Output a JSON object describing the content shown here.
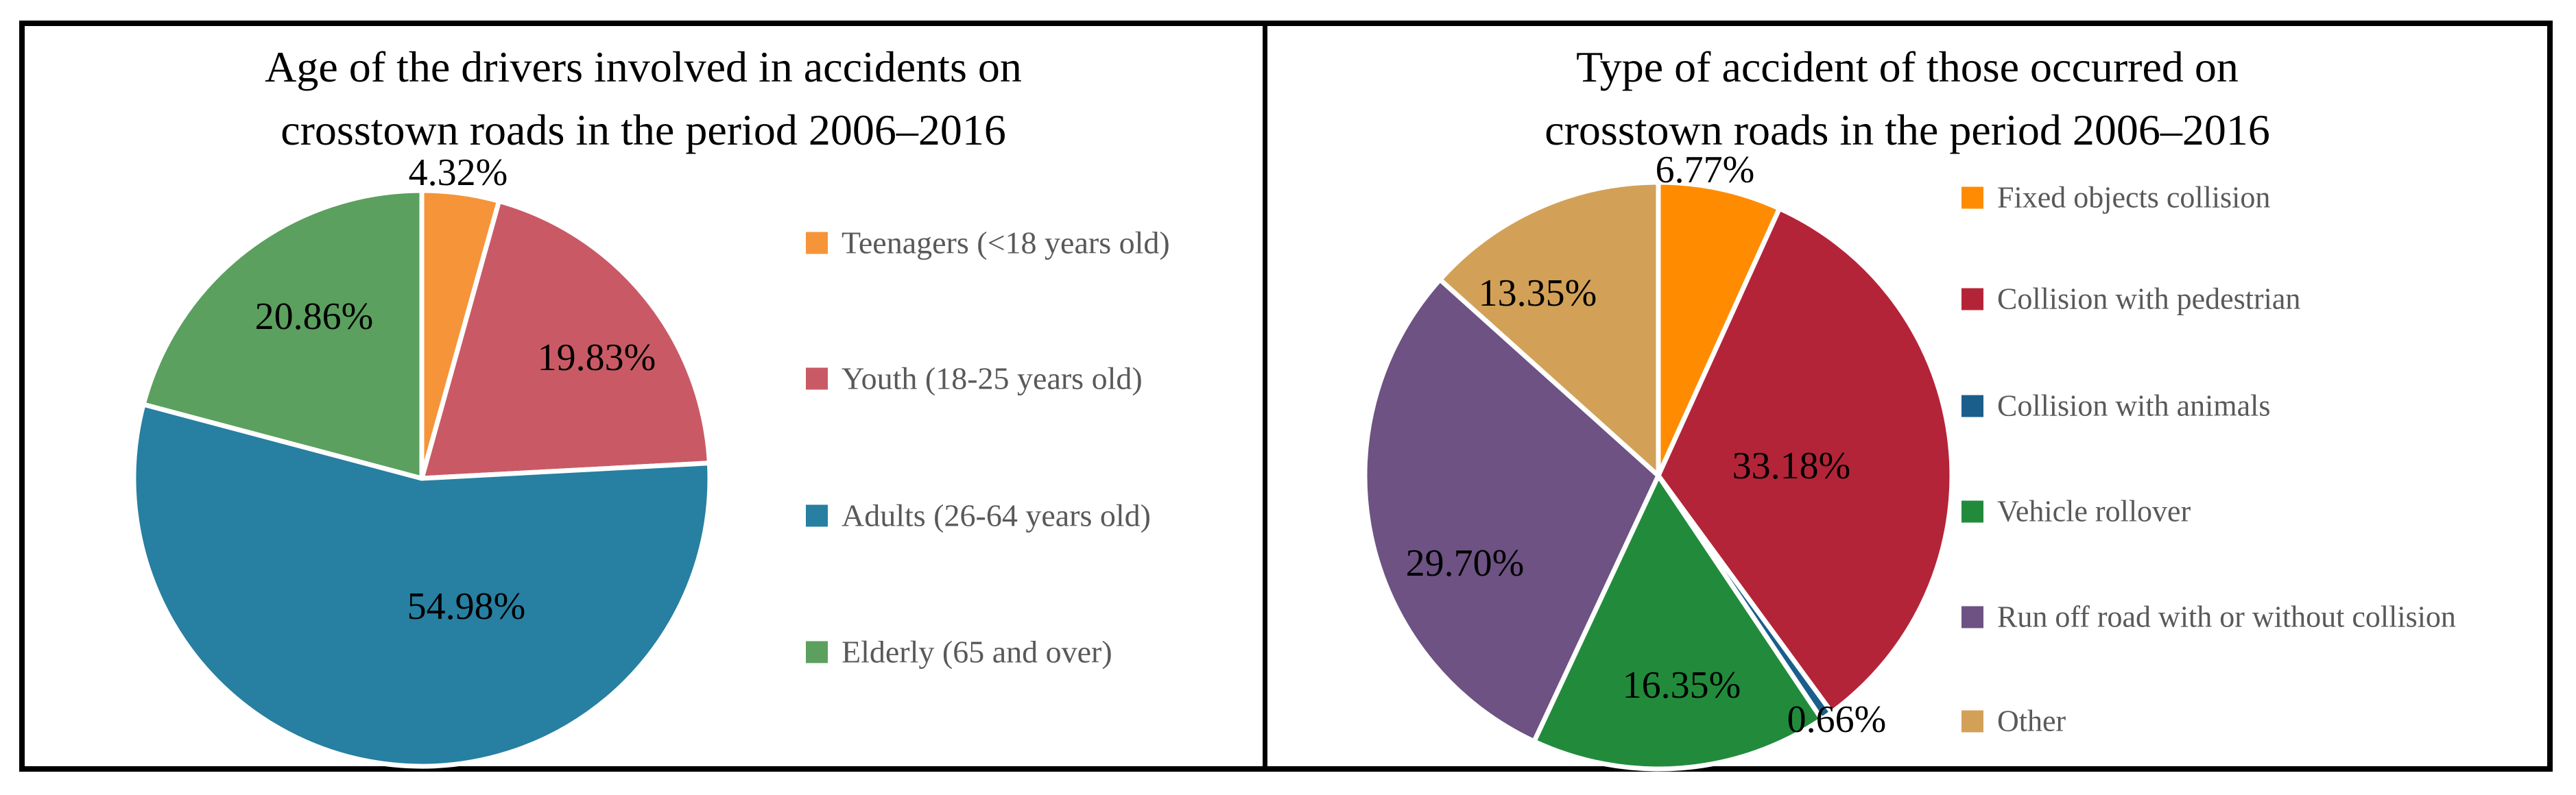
{
  "figure": {
    "background": "#ffffff",
    "border_color": "#000000",
    "legend_text_color": "#595959",
    "label_text_color": "#000000"
  },
  "chart_data": [
    {
      "type": "pie",
      "title": "Age of the drivers involved in accidents on crosstown roads in the period 2006–2016",
      "title_lines": [
        "Age of the drivers involved in accidents on",
        "crosstown roads in the period 2006–2016"
      ],
      "start_angle_deg": 0,
      "direction": "clockwise",
      "legend_position": "right",
      "slices": [
        {
          "label": "Teenagers (<18 years old)",
          "value": 4.32,
          "pct_label": "4.32%",
          "color": "#F69439"
        },
        {
          "label": "Youth (18-25 years old)",
          "value": 19.83,
          "pct_label": "19.83%",
          "color": "#C95A65"
        },
        {
          "label": "Adults (26-64 years old)",
          "value": 54.98,
          "pct_label": "54.98%",
          "color": "#277FA1"
        },
        {
          "label": "Elderly (65 and over)",
          "value": 20.86,
          "pct_label": "20.86%",
          "color": "#5BA05E"
        }
      ]
    },
    {
      "type": "pie",
      "title": "Type of accident of those occurred on crosstown roads in the period 2006–2016",
      "title_lines": [
        "Type of accident of those occurred on",
        "crosstown roads in the period 2006–2016"
      ],
      "start_angle_deg": 0,
      "direction": "clockwise",
      "legend_position": "right",
      "slices": [
        {
          "label": "Fixed objects collision",
          "value": 6.77,
          "pct_label": "6.77%",
          "color": "#FF8C00"
        },
        {
          "label": "Collision with pedestrian",
          "value": 33.18,
          "pct_label": "33.18%",
          "color": "#B42438"
        },
        {
          "label": "Collision with animals",
          "value": 0.66,
          "pct_label": "0.66%",
          "color": "#1B5E8C"
        },
        {
          "label": "Vehicle rollover",
          "value": 16.35,
          "pct_label": "16.35%",
          "color": "#218B3B"
        },
        {
          "label": "Run off road with or without collision",
          "value": 29.7,
          "pct_label": "29.70%",
          "color": "#6D5283"
        },
        {
          "label": "Other",
          "value": 13.35,
          "pct_label": "13.35%",
          "color": "#D2A157"
        }
      ]
    }
  ]
}
